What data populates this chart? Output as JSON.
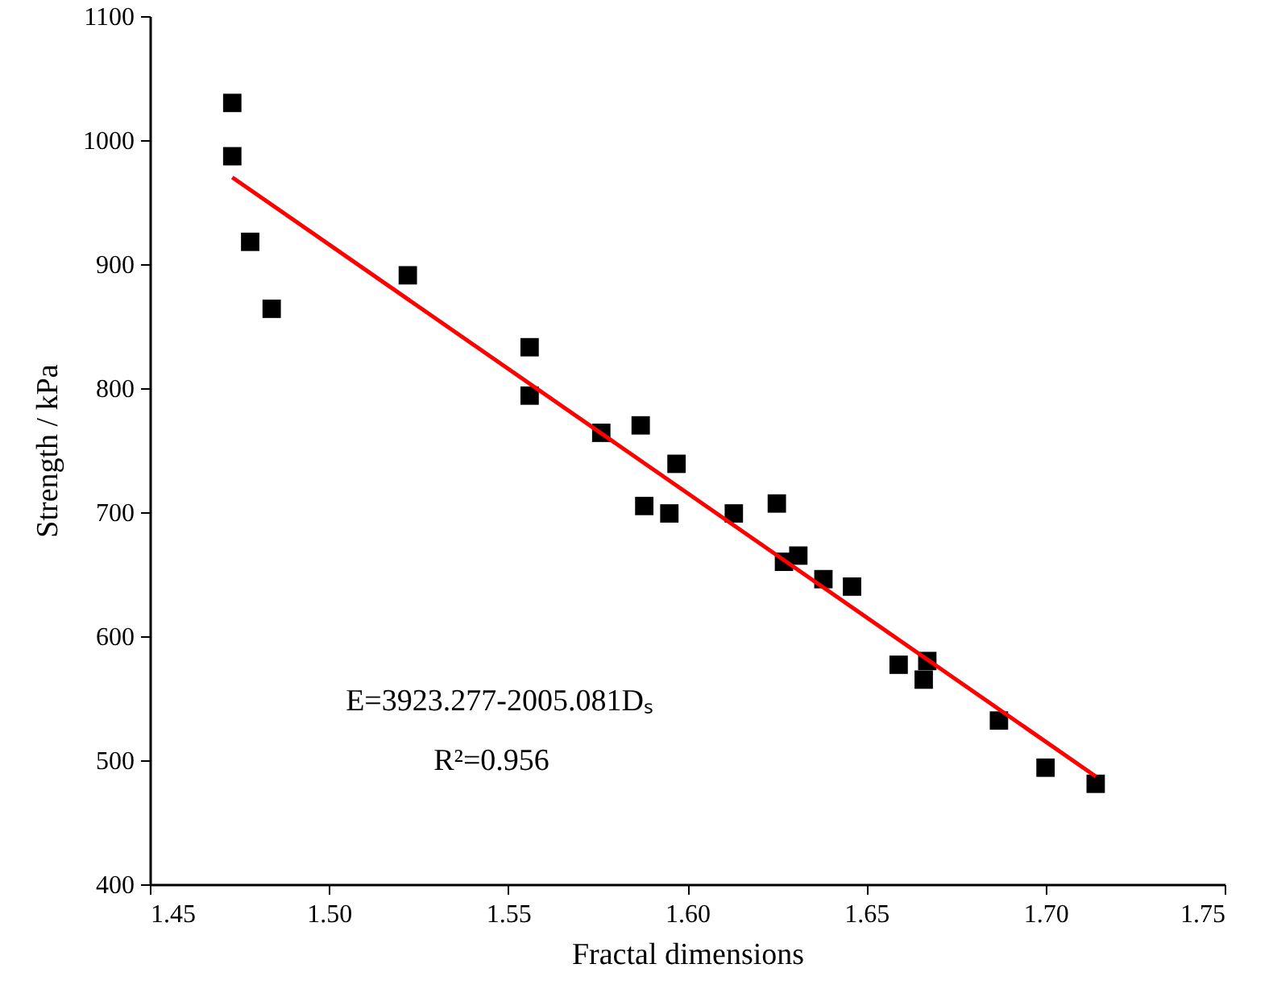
{
  "chart_data": {
    "type": "scatter",
    "xlabel": "Fractal dimensions",
    "ylabel": "Strength / kPa",
    "xlim": [
      1.45,
      1.75
    ],
    "xticks": [
      {
        "value": 1.45,
        "label": "1.45"
      },
      {
        "value": 1.5,
        "label": "1.50"
      },
      {
        "value": 1.55,
        "label": "1.55"
      },
      {
        "value": 1.6,
        "label": "1.60"
      },
      {
        "value": 1.65,
        "label": "1.65"
      },
      {
        "value": 1.7,
        "label": "1.70"
      },
      {
        "value": 1.75,
        "label": "1.75"
      }
    ],
    "ylim": [
      400,
      1100
    ],
    "yticks": [
      400,
      500,
      600,
      700,
      800,
      900,
      1000,
      1100
    ],
    "grid": false,
    "series": [
      {
        "marker": "square",
        "color": "#000000",
        "x": [
          1.473,
          1.473,
          1.478,
          1.484,
          1.522,
          1.556,
          1.556,
          1.576,
          1.587,
          1.588,
          1.595,
          1.597,
          1.613,
          1.625,
          1.627,
          1.631,
          1.638,
          1.646,
          1.659,
          1.666,
          1.667,
          1.687,
          1.7,
          1.714
        ],
        "values": [
          1030,
          987,
          918,
          864,
          891,
          833,
          794,
          764,
          770,
          705,
          699,
          739,
          699,
          707,
          660,
          665,
          646,
          640,
          577,
          565,
          580,
          532,
          494,
          481
        ]
      },
      {
        "type": "line",
        "line_style": "solid",
        "color": "#ff0000",
        "x": [
          1.473,
          1.714
        ],
        "values": [
          970,
          487
        ]
      }
    ],
    "annotations": [
      "E=3923.277-2005.081Dₛ",
      "R²=0.956"
    ]
  }
}
